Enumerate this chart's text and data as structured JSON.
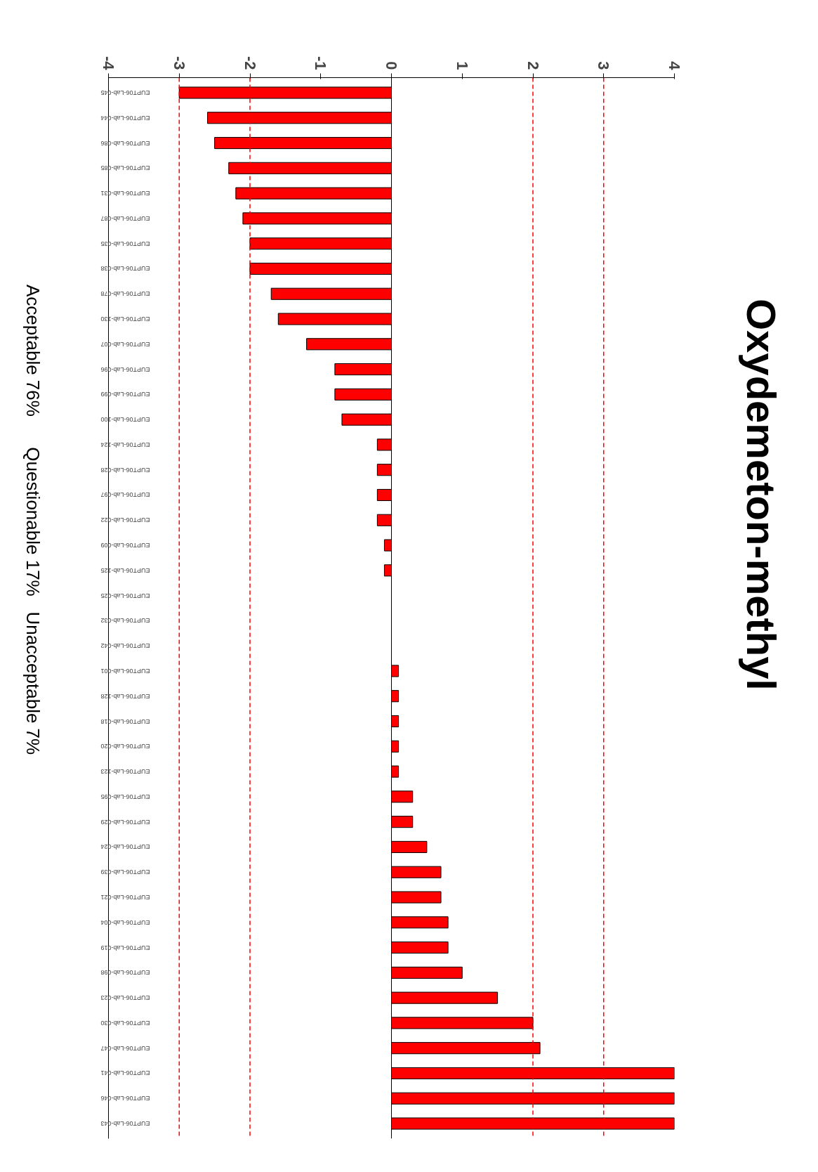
{
  "chart_data": {
    "type": "bar",
    "orientation": "horizontal",
    "title": "Oxydemeton-methyl",
    "categories": [
      "EUPT06-Lab-045",
      "EUPT06-Lab-044",
      "EUPT06-Lab-086",
      "EUPT06-Lab-085",
      "EUPT06-Lab-031",
      "EUPT06-Lab-087",
      "EUPT06-Lab-035",
      "EUPT06-Lab-038",
      "EUPT06-Lab-078",
      "EUPT06-Lab-130",
      "EUPT06-Lab-007",
      "EUPT06-Lab-096",
      "EUPT06-Lab-099",
      "EUPT06-Lab-100",
      "EUPT06-Lab-124",
      "EUPT06-Lab-028",
      "EUPT06-Lab-097",
      "EUPT06-Lab-022",
      "EUPT06-Lab-009",
      "EUPT06-Lab-125",
      "EUPT06-Lab-025",
      "EUPT06-Lab-032",
      "EUPT06-Lab-042",
      "EUPT06-Lab-001",
      "EUPT06-Lab-128",
      "EUPT06-Lab-018",
      "EUPT06-Lab-020",
      "EUPT06-Lab-123",
      "EUPT06-Lab-095",
      "EUPT06-Lab-029",
      "EUPT06-Lab-024",
      "EUPT06-Lab-039",
      "EUPT06-Lab-021",
      "EUPT06-Lab-004",
      "EUPT06-Lab-019",
      "EUPT06-Lab-098",
      "EUPT06-Lab-023",
      "EUPT06-Lab-030",
      "EUPT06-Lab-047",
      "EUPT06-Lab-041",
      "EUPT06-Lab-046",
      "EUPT06-Lab-043"
    ],
    "values": [
      -3,
      -2.6,
      -2.5,
      -2.3,
      -2.2,
      -2.1,
      -2.0,
      -2.0,
      -1.7,
      -1.6,
      -1.2,
      -0.8,
      -0.8,
      -0.7,
      -0.2,
      -0.2,
      -0.2,
      -0.2,
      -0.1,
      -0.1,
      0,
      0,
      0,
      0.1,
      0.1,
      0.1,
      0.1,
      0.1,
      0.3,
      0.3,
      0.5,
      0.7,
      0.7,
      0.8,
      0.8,
      1.0,
      1.5,
      2.0,
      2.1,
      4,
      4,
      4
    ],
    "color": "#ff0000",
    "xlim": [
      -4,
      4
    ],
    "xticks": [
      -4,
      -3,
      -2,
      -1,
      0,
      1,
      2,
      3,
      4
    ],
    "ref_lines": [
      {
        "axis": "x",
        "value": -3,
        "color": "#ff0000",
        "line_style": "dashed"
      },
      {
        "axis": "x",
        "value": -2,
        "color": "#ff0000",
        "line_style": "dashed"
      },
      {
        "axis": "x",
        "value": 2,
        "color": "#ff0000",
        "line_style": "dashed"
      },
      {
        "axis": "x",
        "value": 3,
        "color": "#ff0000",
        "line_style": "dashed"
      }
    ],
    "annotations": [
      "Acceptable 76%      Questionable 17%   Unacceptable 7%"
    ],
    "grid": false
  }
}
